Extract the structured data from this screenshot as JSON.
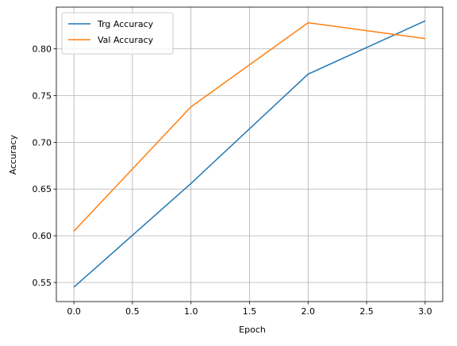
{
  "chart_data": {
    "type": "line",
    "xlabel": "Epoch",
    "ylabel": "Accuracy",
    "x": [
      0,
      1,
      2,
      3
    ],
    "series": [
      {
        "name": "Trg Accuracy",
        "color": "#1f77b4",
        "values": [
          0.545,
          0.656,
          0.773,
          0.83
        ]
      },
      {
        "name": "Val Accuracy",
        "color": "#ff7f0e",
        "values": [
          0.605,
          0.738,
          0.828,
          0.811
        ]
      }
    ],
    "xlim": [
      -0.15,
      3.15
    ],
    "xticks": [
      {
        "value": 0,
        "label": "0.0"
      },
      {
        "value": 0.5,
        "label": "0.5"
      },
      {
        "value": 1,
        "label": "1.0"
      },
      {
        "value": 1.5,
        "label": "1.5"
      },
      {
        "value": 2,
        "label": "2.0"
      },
      {
        "value": 2.5,
        "label": "2.5"
      },
      {
        "value": 3,
        "label": "3.0"
      }
    ],
    "ylim": [
      0.5296,
      0.8447
    ],
    "yticks": [
      0.55,
      {
        "value": 0.6,
        "label": "0.60"
      },
      0.65,
      {
        "value": 0.7,
        "label": "0.70"
      },
      0.75,
      {
        "value": 0.8,
        "label": "0.80"
      }
    ],
    "grid": true,
    "legend": "upper-left"
  }
}
